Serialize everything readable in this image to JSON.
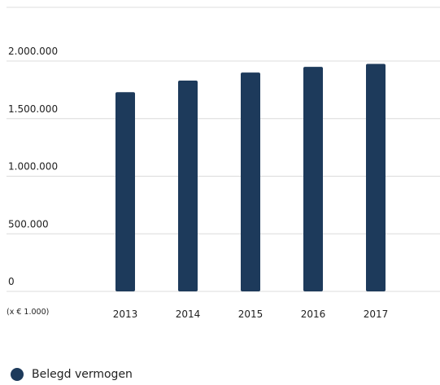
{
  "colors": {
    "bar": "#1d3a5b",
    "grid": "#dcdcdc",
    "text": "#1f1f1f"
  },
  "chart_data": {
    "type": "bar",
    "categories": [
      "2013",
      "2014",
      "2015",
      "2016",
      "2017"
    ],
    "series": [
      {
        "name": "Belegd vermogen",
        "values": [
          1730000,
          1830000,
          1900000,
          1950000,
          1975000
        ]
      }
    ],
    "ylim": [
      0,
      2000000
    ],
    "yticks": [
      0,
      500000,
      1000000,
      1500000,
      2000000
    ],
    "ytick_labels": [
      "0",
      "500.000",
      "1.000.000",
      "1.500.000",
      "2.000.000"
    ],
    "unit_label": "(x € 1.000)",
    "grid": true,
    "legend_position": "bottom-left"
  }
}
